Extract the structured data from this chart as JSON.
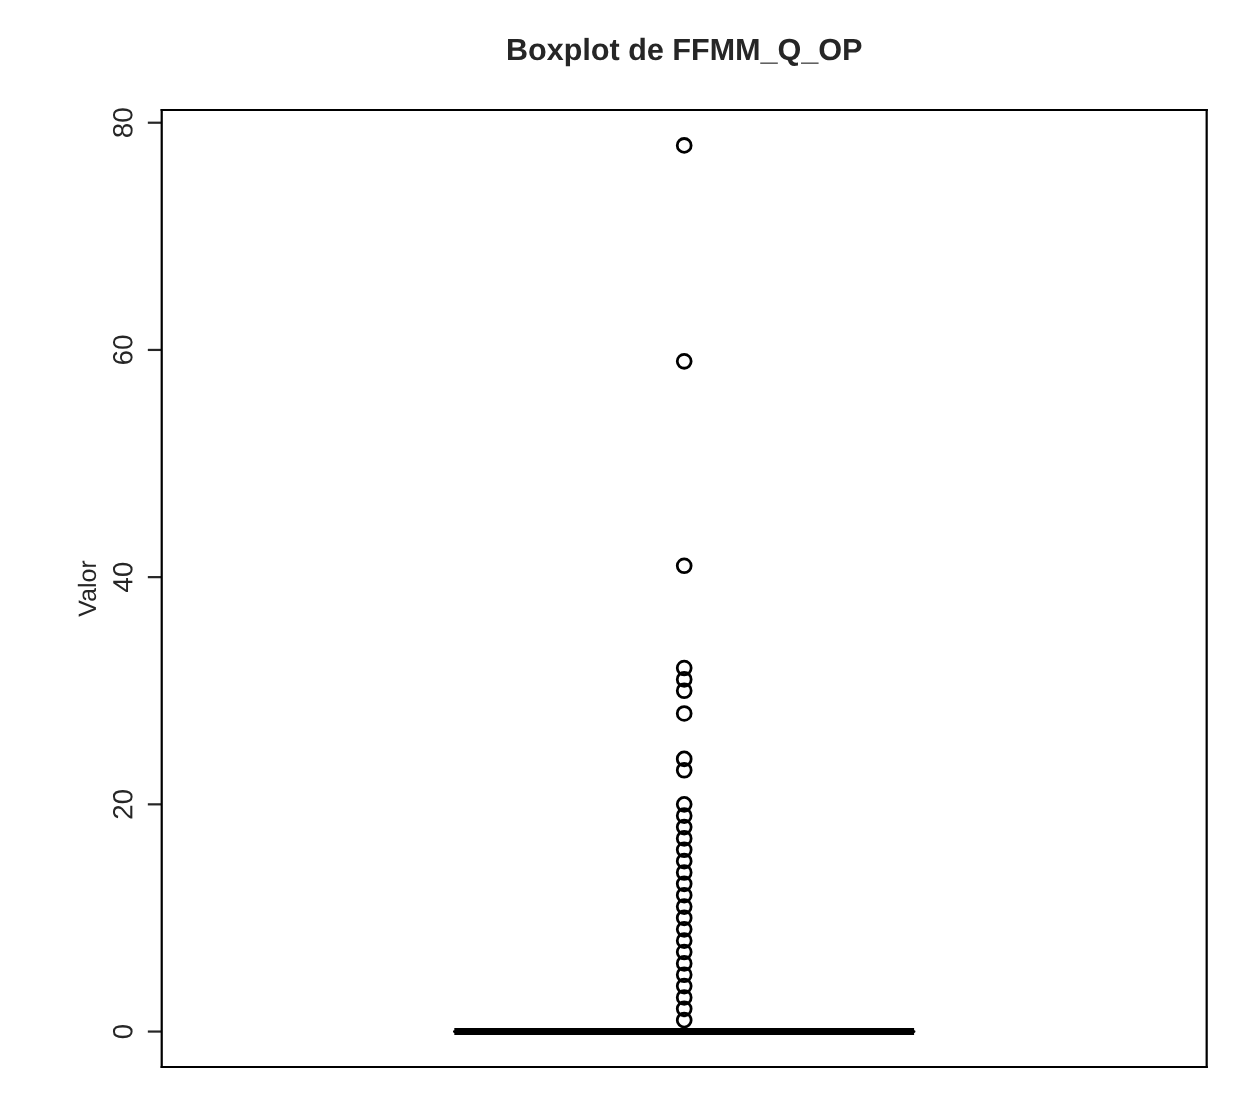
{
  "chart_data": {
    "type": "box",
    "title": "Boxplot de FFMM_Q_OP",
    "ylabel": "Valor",
    "categories": [
      null
    ],
    "boxes": [
      {
        "low": 0,
        "q1": 0,
        "median": 0,
        "q3": 0,
        "high": 0,
        "outliers": [
          1,
          2,
          3,
          4,
          5,
          6,
          7,
          8,
          9,
          10,
          11,
          12,
          13,
          14,
          15,
          16,
          17,
          18,
          19,
          20,
          23,
          24,
          28,
          30,
          31,
          32,
          41,
          59,
          78
        ]
      }
    ],
    "ylim": [
      -3.12,
      81.12
    ],
    "yticks": [
      0,
      20,
      40,
      60,
      80
    ],
    "tick_labels": "y"
  }
}
